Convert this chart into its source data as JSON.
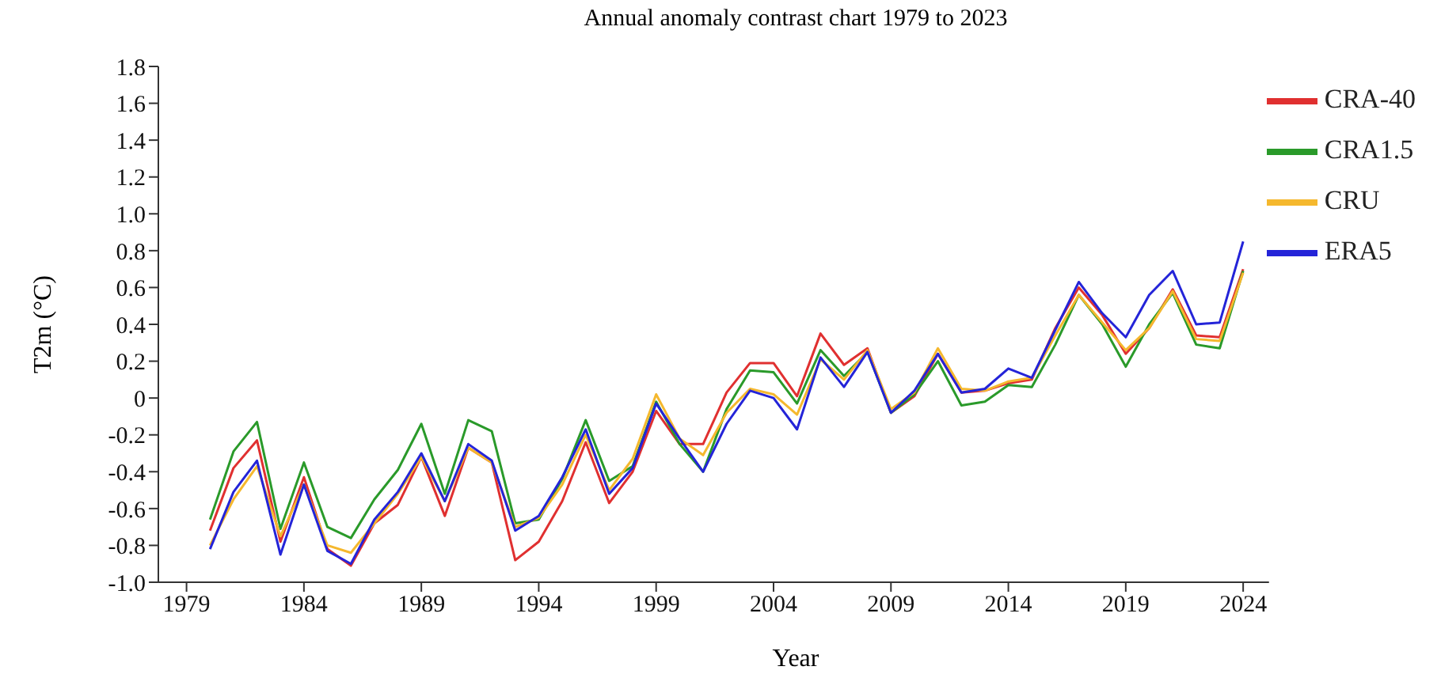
{
  "chart_data": {
    "type": "line",
    "title": "Annual anomaly contrast chart 1979 to 2023",
    "xlabel": "Year",
    "ylabel": "T2m (°C)",
    "x": [
      1980,
      1981,
      1982,
      1983,
      1984,
      1985,
      1986,
      1987,
      1988,
      1989,
      1990,
      1991,
      1992,
      1993,
      1994,
      1995,
      1996,
      1997,
      1998,
      1999,
      2000,
      2001,
      2002,
      2003,
      2004,
      2005,
      2006,
      2007,
      2008,
      2009,
      2010,
      2011,
      2012,
      2013,
      2014,
      2015,
      2016,
      2017,
      2018,
      2019,
      2020,
      2021,
      2022,
      2023,
      2024
    ],
    "series": [
      {
        "name": "CRA-40",
        "color": "#e03030",
        "values": [
          -0.72,
          -0.38,
          -0.23,
          -0.78,
          -0.43,
          -0.82,
          -0.91,
          -0.68,
          -0.58,
          -0.32,
          -0.64,
          -0.27,
          -0.35,
          -0.88,
          -0.78,
          -0.56,
          -0.24,
          -0.57,
          -0.4,
          -0.07,
          -0.25,
          -0.25,
          0.03,
          0.19,
          0.19,
          0.01,
          0.35,
          0.18,
          0.27,
          -0.08,
          0.01,
          0.24,
          0.03,
          0.04,
          0.08,
          0.1,
          0.38,
          0.6,
          0.45,
          0.24,
          0.38,
          0.59,
          0.34,
          0.33,
          0.7
        ]
      },
      {
        "name": "CRA1.5",
        "color": "#2a9a2a",
        "values": [
          -0.66,
          -0.29,
          -0.13,
          -0.71,
          -0.35,
          -0.7,
          -0.76,
          -0.55,
          -0.39,
          -0.14,
          -0.52,
          -0.12,
          -0.18,
          -0.68,
          -0.66,
          -0.44,
          -0.12,
          -0.45,
          -0.37,
          -0.02,
          -0.25,
          -0.4,
          -0.06,
          0.15,
          0.14,
          -0.03,
          0.26,
          0.12,
          0.25,
          -0.08,
          0.02,
          0.2,
          -0.04,
          -0.02,
          0.07,
          0.06,
          0.29,
          0.56,
          0.4,
          0.17,
          0.4,
          0.57,
          0.29,
          0.27,
          0.69
        ]
      },
      {
        "name": "CRU",
        "color": "#f5b82e",
        "values": [
          -0.8,
          -0.55,
          -0.37,
          -0.75,
          -0.47,
          -0.8,
          -0.84,
          -0.68,
          -0.52,
          -0.32,
          -0.56,
          -0.27,
          -0.35,
          -0.7,
          -0.65,
          -0.47,
          -0.2,
          -0.5,
          -0.33,
          0.02,
          -0.22,
          -0.31,
          -0.08,
          0.05,
          0.02,
          -0.09,
          0.21,
          0.1,
          0.26,
          -0.06,
          0.03,
          0.27,
          0.05,
          0.04,
          0.09,
          0.11,
          0.34,
          0.56,
          0.41,
          0.26,
          0.38,
          0.58,
          0.32,
          0.31,
          0.68
        ]
      },
      {
        "name": "ERA5",
        "color": "#2424d8",
        "values": [
          -0.82,
          -0.51,
          -0.34,
          -0.85,
          -0.47,
          -0.83,
          -0.9,
          -0.66,
          -0.51,
          -0.3,
          -0.56,
          -0.25,
          -0.34,
          -0.72,
          -0.64,
          -0.43,
          -0.17,
          -0.52,
          -0.38,
          -0.03,
          -0.22,
          -0.4,
          -0.14,
          0.04,
          0.0,
          -0.17,
          0.22,
          0.06,
          0.25,
          -0.08,
          0.04,
          0.24,
          0.03,
          0.05,
          0.16,
          0.11,
          0.37,
          0.63,
          0.46,
          0.33,
          0.56,
          0.69,
          0.4,
          0.41,
          0.85
        ]
      }
    ],
    "xlim": [
      1977.8,
      2025.1
    ],
    "xticks": [
      1979,
      1984,
      1989,
      1994,
      1999,
      2004,
      2009,
      2014,
      2019,
      2024
    ],
    "ylim": [
      -1.0,
      1.8
    ],
    "yticks": [
      {
        "value": -1.0,
        "label": "-1.0"
      },
      -0.8,
      -0.6,
      -0.4,
      -0.2,
      0,
      0.2,
      0.4,
      0.6,
      0.8,
      {
        "value": 1.0,
        "label": "1.0"
      },
      1.2,
      1.4,
      1.6,
      1.8
    ],
    "legend": "top right",
    "marker": "none",
    "line_style": "solid"
  }
}
